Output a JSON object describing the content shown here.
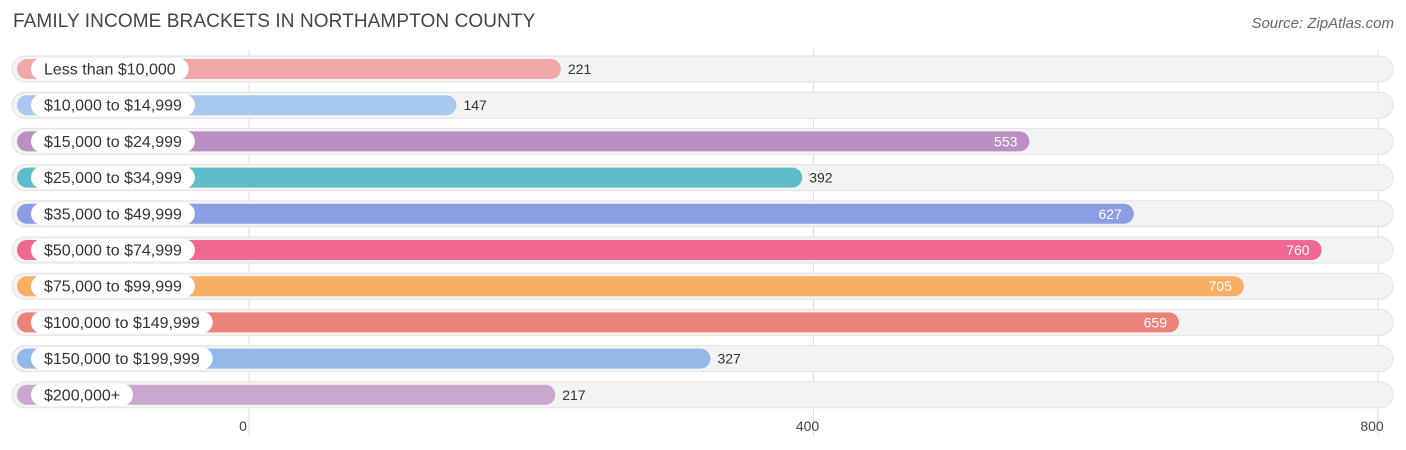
{
  "title": "FAMILY INCOME BRACKETS IN NORTHAMPTON COUNTY",
  "source": "Source: ZipAtlas.com",
  "chart_data": {
    "type": "bar",
    "orientation": "horizontal",
    "title": "FAMILY INCOME BRACKETS IN NORTHAMPTON COUNTY",
    "categories": [
      "Less than $10,000",
      "$10,000 to $14,999",
      "$15,000 to $24,999",
      "$25,000 to $34,999",
      "$35,000 to $49,999",
      "$50,000 to $74,999",
      "$75,000 to $99,999",
      "$100,000 to $149,999",
      "$150,000 to $199,999",
      "$200,000+"
    ],
    "values": [
      221,
      147,
      553,
      392,
      627,
      760,
      705,
      659,
      327,
      217
    ],
    "colors": [
      "#f0a9a8",
      "#a9c8ee",
      "#b98fc4",
      "#5ebdc8",
      "#8b9de3",
      "#f06890",
      "#f8ae64",
      "#ec837b",
      "#93b9e8",
      "#c9a8cf"
    ],
    "value_label_inside": [
      false,
      false,
      true,
      false,
      true,
      true,
      true,
      true,
      false,
      false
    ],
    "xlim": [
      0,
      800
    ],
    "xticks": [
      0,
      400,
      800
    ],
    "grid": true
  }
}
